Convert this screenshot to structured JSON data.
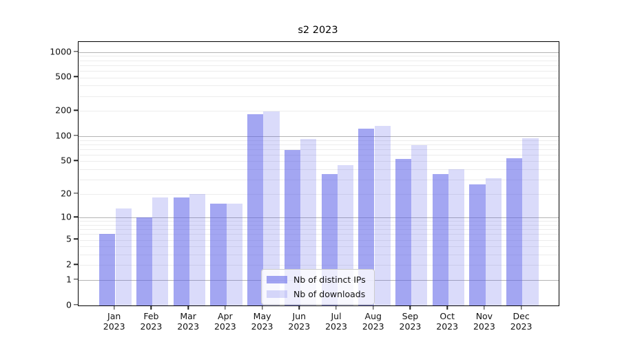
{
  "figure": {
    "title": "s2 2023"
  },
  "chart_data": {
    "type": "bar",
    "title": "s2 2023",
    "categories": [
      "Jan",
      "Feb",
      "Mar",
      "Apr",
      "May",
      "Jun",
      "Jul",
      "Aug",
      "Sep",
      "Oct",
      "Nov",
      "Dec"
    ],
    "year": "2023",
    "series": [
      {
        "name": "Nb of distinct IPs",
        "color": "rgba(88,93,231,0.55)",
        "values": [
          6,
          10,
          18,
          15,
          182,
          68,
          35,
          122,
          53,
          35,
          26,
          54
        ]
      },
      {
        "name": "Nb of downloads",
        "color": "rgba(88,93,231,0.22)",
        "values": [
          13,
          18,
          20,
          15,
          199,
          92,
          45,
          133,
          78,
          40,
          31,
          95
        ]
      }
    ],
    "y_scale": "log1p",
    "y_ticks": [
      0,
      1,
      2,
      5,
      10,
      20,
      50,
      100,
      200,
      500,
      1000
    ],
    "ylim": [
      0,
      1315
    ],
    "grid": "on",
    "legend_position": "lower-center",
    "colors": {
      "bar_dark_effective": "#a3a6f2",
      "bar_light_effective": "#d9dbfa",
      "grid_major": "#b3b3b3",
      "grid_minor": "#ececec",
      "spine": "#000000"
    }
  }
}
